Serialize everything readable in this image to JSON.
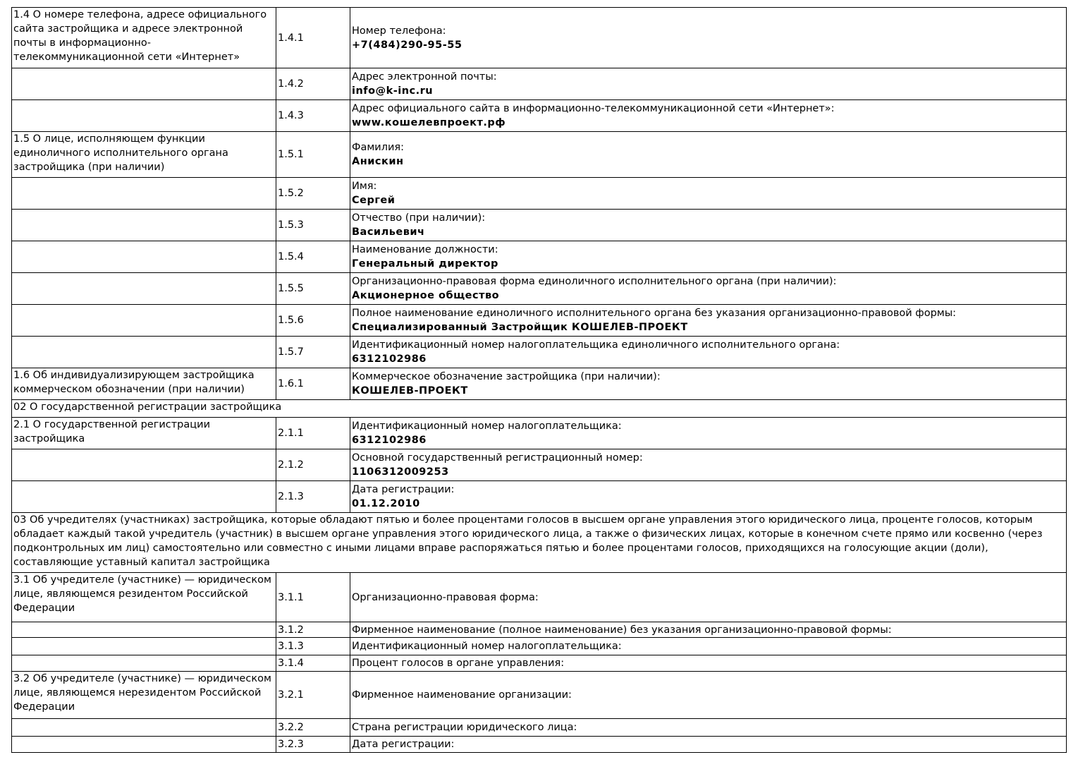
{
  "rows": [
    {
      "type": "row",
      "section": "1.4 О номере телефона, адресе официального сайта застройщика и адресе электронной почты в информационно-телекоммуникационной сети «Интернет»",
      "code": "1.4.1",
      "label": "Номер телефона:",
      "value": "+7(484)290-95-55"
    },
    {
      "type": "row",
      "section": "",
      "code": "1.4.2",
      "label": "Адрес электронной почты:",
      "value": "info@k-inc.ru"
    },
    {
      "type": "row",
      "section": "",
      "code": "1.4.3",
      "label": "Адрес официального сайта в информационно-телекоммуникационной сети «Интернет»:",
      "value": "www.кошелевпроект.рф"
    },
    {
      "type": "row",
      "section": "1.5 О лице, исполняющем функции единоличного исполнительного органа застройщика (при наличии)",
      "code": "1.5.1",
      "label": "Фамилия:",
      "value": "Анискин"
    },
    {
      "type": "row",
      "section": "",
      "code": "1.5.2",
      "label": "Имя:",
      "value": "Сергей"
    },
    {
      "type": "row",
      "section": "",
      "code": "1.5.3",
      "label": "Отчество (при наличии):",
      "value": "Васильевич"
    },
    {
      "type": "row",
      "section": "",
      "code": "1.5.4",
      "label": "Наименование должности:",
      "value": "Генеральный директор"
    },
    {
      "type": "row",
      "section": "",
      "code": "1.5.5",
      "label": "Организационно-правовая форма единоличного исполнительного органа (при наличии):",
      "value": "Акционерное общество"
    },
    {
      "type": "row",
      "section": "",
      "code": "1.5.6",
      "label": "Полное наименование единоличного исполнительного органа без указания организационно-правовой формы:",
      "value": "Специализированный Застройщик КОШЕЛЕВ-ПРОЕКТ"
    },
    {
      "type": "row",
      "section": "",
      "code": "1.5.7",
      "label": "Идентификационный номер налогоплательщика единоличного исполнительного органа:",
      "value": "6312102986"
    },
    {
      "type": "row",
      "section": "1.6 Об индивидуализирующем застройщика коммерческом обозначении (при наличии)",
      "code": "1.6.1",
      "label": "Коммерческое обозначение застройщика (при наличии):",
      "value": "КОШЕЛЕВ-ПРОЕКТ"
    },
    {
      "type": "header",
      "text": "02 О государственной регистрации застройщика"
    },
    {
      "type": "row",
      "section": "2.1 О государственной регистрации застройщика",
      "code": "2.1.1",
      "label": "Идентификационный номер налогоплательщика:",
      "value": "6312102986"
    },
    {
      "type": "row",
      "section": "",
      "code": "2.1.2",
      "label": "Основной государственный регистрационный номер:",
      "value": "1106312009253"
    },
    {
      "type": "row",
      "section": "",
      "code": "2.1.3",
      "label": "Дата регистрации:",
      "value": "01.12.2010"
    },
    {
      "type": "header",
      "text": "03 Об учредителях (участниках) застройщика, которые обладают пятью и более процентами голосов в высшем органе управления этого юридического лица, проценте голосов, которым обладает каждый такой учредитель (участник) в высшем органе управления этого юридического лица, а также о физических лицах, которые в конечном счете прямо или косвенно (через подконтрольных им лиц) самостоятельно или совместно с иными лицами вправе распоряжаться пятью и более процентами голосов, приходящихся на голосующие акции (доли), составляющие уставный капитал застройщика"
    },
    {
      "type": "row",
      "section": "3.1 Об учредителе (участнике) — юридическом лице, являющемся резидентом Российской Федерации",
      "code": "3.1.1",
      "label": "Организационно-правовая форма:",
      "value": ""
    },
    {
      "type": "row",
      "section": "",
      "code": "3.1.2",
      "label": "Фирменное наименование (полное наименование) без указания организационно-правовой формы:",
      "value": ""
    },
    {
      "type": "row",
      "section": "",
      "code": "3.1.3",
      "label": "Идентификационный номер налогоплательщика:",
      "value": ""
    },
    {
      "type": "row",
      "section": "",
      "code": "3.1.4",
      "label": "Процент голосов в органе управления:",
      "value": ""
    },
    {
      "type": "row",
      "section": "3.2 Об учредителе (участнике) — юридическом лице, являющемся нерезидентом Российской Федерации",
      "code": "3.2.1",
      "label": "Фирменное наименование организации:",
      "value": ""
    },
    {
      "type": "row",
      "section": "",
      "code": "3.2.2",
      "label": "Страна регистрации юридического лица:",
      "value": ""
    },
    {
      "type": "row",
      "section": "",
      "code": "3.2.3",
      "label": "Дата регистрации:",
      "value": ""
    }
  ]
}
